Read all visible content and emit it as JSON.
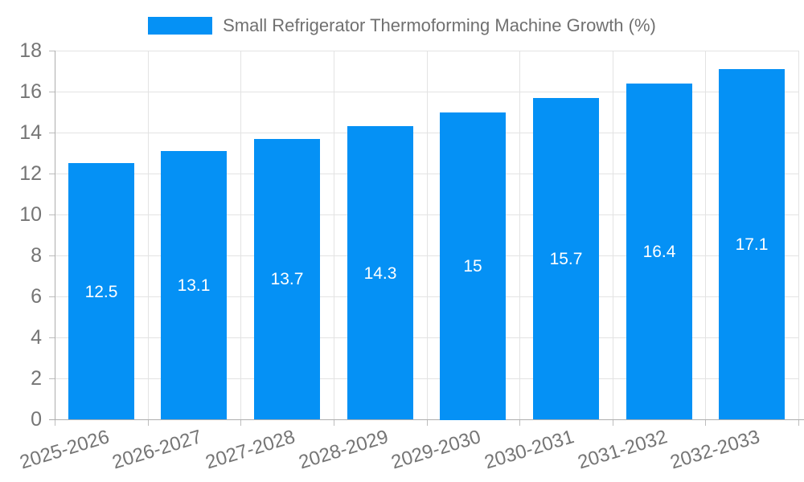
{
  "legend": {
    "label": "Small Refrigerator Thermoforming Machine Growth (%)"
  },
  "chart_data": {
    "type": "bar",
    "title": "Small Refrigerator Thermoforming Machine Growth (%)",
    "categories": [
      "2025-2026",
      "2026-2027",
      "2027-2028",
      "2028-2029",
      "2029-2030",
      "2030-2031",
      "2031-2032",
      "2032-2033"
    ],
    "values": [
      12.5,
      13.1,
      13.7,
      14.3,
      15,
      15.7,
      16.4,
      17.1
    ],
    "bar_labels": [
      "12.5",
      "13.1",
      "13.7",
      "14.3",
      "15",
      "15.7",
      "16.4",
      "17.1"
    ],
    "xlabel": "",
    "ylabel": "",
    "ylim": [
      0,
      18
    ],
    "ytick_step": 2,
    "ytick_labels": [
      "0",
      "2",
      "4",
      "6",
      "8",
      "10",
      "12",
      "14",
      "16",
      "18"
    ],
    "grid": true,
    "legend_position": "top",
    "value_label_position": "inside-center"
  },
  "colors": {
    "bar": "#0591f5",
    "grid": "#e3e3e3",
    "axis": "#aeaeae",
    "tick": "#bdbdbd",
    "axis_text": "#757575",
    "legend_text": "#707070",
    "value_label": "#ffffff",
    "background": "#ffffff"
  }
}
